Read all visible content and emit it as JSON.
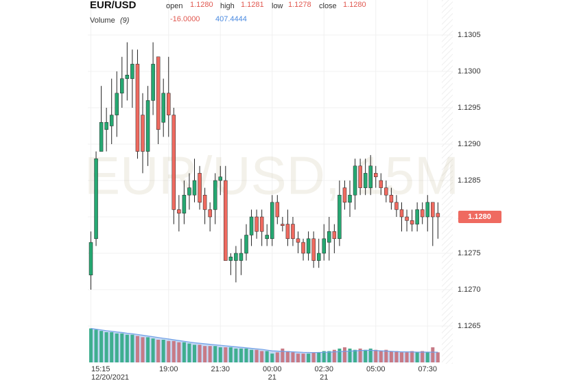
{
  "chart_data": {
    "type": "candlestick",
    "symbol": "EUR/USD",
    "watermark": "EUR/USD, 15M",
    "legend": {
      "open_label": "open",
      "open": "1.1280",
      "high_label": "high",
      "high": "1.1281",
      "low_label": "low",
      "low": "1.1278",
      "close_label": "close",
      "close": "1.1280"
    },
    "volume_label": "Volume",
    "volume_period": "(9)",
    "volume_change": "-16.0000",
    "categories": [
      "15:15",
      null,
      null,
      null,
      null,
      null,
      null,
      null,
      null,
      null,
      null,
      null,
      null,
      null,
      null,
      "19:00",
      null,
      null,
      null,
      null,
      null,
      null,
      null,
      null,
      null,
      "21:30",
      null,
      null,
      null,
      null,
      null,
      null,
      null,
      null,
      null,
      "00:00",
      null,
      null,
      null,
      null,
      null,
      null,
      null,
      null,
      null,
      "02:30",
      null,
      null,
      null,
      null,
      null,
      null,
      null,
      null,
      null,
      "05:00",
      null,
      null,
      null,
      null,
      null,
      null,
      null,
      null,
      null,
      "07:30",
      null,
      null
    ],
    "category_dates": [
      "12/20/2021",
      null,
      null,
      null,
      null,
      null,
      null,
      null,
      null,
      null,
      null,
      null,
      null,
      null,
      null,
      null,
      null,
      null,
      null,
      null,
      null,
      null,
      null,
      null,
      null,
      null,
      null,
      null,
      null,
      null,
      null,
      null,
      null,
      null,
      null,
      "21",
      null,
      null,
      null,
      null,
      null,
      null,
      null,
      null,
      null,
      "21",
      null,
      null,
      null,
      null,
      null,
      null,
      null,
      null,
      null,
      null,
      null,
      null,
      null,
      null,
      null,
      null,
      null,
      null,
      null,
      null,
      null,
      null
    ],
    "open": [
      1.1272,
      1.1277,
      1.1289,
      1.1292,
      1.12925,
      1.1294,
      1.1297,
      1.1299,
      1.1299,
      1.1301,
      1.1294,
      1.1289,
      1.1296,
      1.1302,
      1.1293,
      1.1297,
      1.1294,
      1.1281,
      1.12805,
      1.1283,
      1.1283,
      1.1286,
      1.1283,
      1.1281,
      1.1281,
      1.1285,
      1.1285,
      1.1274,
      1.1274,
      1.1274,
      1.1275,
      1.12775,
      1.128,
      1.128,
      1.1277,
      1.1277,
      1.1282,
      1.1279,
      1.1279,
      1.1279,
      1.1277,
      1.12765,
      1.1275,
      1.1277,
      1.1274,
      1.1275,
      1.12765,
      1.1278,
      1.1277,
      1.1284,
      1.1282,
      1.1283,
      1.1287,
      1.1284,
      1.1284,
      1.1286,
      1.1285,
      1.1284,
      1.1283,
      1.1282,
      1.1281,
      1.128,
      1.12795,
      1.1279,
      1.1281,
      1.128,
      1.1282,
      1.12805
    ],
    "high": [
      1.1278,
      1.1289,
      1.1298,
      1.1295,
      1.1299,
      1.13,
      1.1302,
      1.1304,
      1.1303,
      1.1303,
      1.1297,
      1.1298,
      1.1304,
      1.1302,
      1.1299,
      1.1302,
      1.1295,
      1.1283,
      1.1285,
      1.1286,
      1.1288,
      1.1287,
      1.1284,
      1.1282,
      1.1286,
      1.1287,
      1.1287,
      1.1275,
      1.1276,
      1.1277,
      1.1279,
      1.1281,
      1.1281,
      1.1281,
      1.1279,
      1.1283,
      1.1283,
      1.128,
      1.1281,
      1.128,
      1.1278,
      1.1277,
      1.1278,
      1.1278,
      1.1277,
      1.1279,
      1.128,
      1.1279,
      1.1285,
      1.1285,
      1.1285,
      1.1288,
      1.1288,
      1.1288,
      1.12885,
      1.1287,
      1.1286,
      1.1285,
      1.1284,
      1.1283,
      1.1282,
      1.1281,
      1.1281,
      1.1282,
      1.1282,
      1.1283,
      1.1282,
      1.1282
    ],
    "low": [
      1.127,
      1.1276,
      1.1289,
      1.1289,
      1.129,
      1.1291,
      1.1295,
      1.1296,
      1.1295,
      1.1288,
      1.1286,
      1.1287,
      1.1294,
      1.129,
      1.1291,
      1.1291,
      1.1279,
      1.1278,
      1.1279,
      1.1281,
      1.1282,
      1.1281,
      1.1279,
      1.1278,
      1.1279,
      1.1283,
      1.1274,
      1.1272,
      1.1271,
      1.1272,
      1.1274,
      1.1276,
      1.1277,
      1.1276,
      1.1276,
      1.1276,
      1.1279,
      1.1278,
      1.1276,
      1.1276,
      1.1275,
      1.1274,
      1.1274,
      1.1273,
      1.1273,
      1.1274,
      1.1274,
      1.1275,
      1.1276,
      1.1281,
      1.128,
      1.1281,
      1.1283,
      1.1283,
      1.1283,
      1.1284,
      1.1283,
      1.1282,
      1.1281,
      1.128,
      1.1278,
      1.1278,
      1.1278,
      1.1278,
      1.1279,
      1.1278,
      1.1276,
      1.1277
    ],
    "close": [
      1.12765,
      1.1288,
      1.1293,
      1.1293,
      1.1294,
      1.1297,
      1.1299,
      1.12995,
      1.1301,
      1.1289,
      1.1289,
      1.1296,
      1.1301,
      1.1292,
      1.1297,
      1.1294,
      1.1281,
      1.12805,
      1.1283,
      1.1284,
      1.1285,
      1.1282,
      1.1281,
      1.128,
      1.1285,
      1.12855,
      1.1274,
      1.12745,
      1.1275,
      1.1275,
      1.12775,
      1.128,
      1.1278,
      1.1278,
      1.12775,
      1.1282,
      1.128,
      1.12788,
      1.1277,
      1.1277,
      1.12765,
      1.1275,
      1.1277,
      1.1274,
      1.1275,
      1.1277,
      1.1278,
      1.1277,
      1.1283,
      1.1282,
      1.1283,
      1.1287,
      1.1284,
      1.1286,
      1.1287,
      1.12855,
      1.1284,
      1.1283,
      1.1282,
      1.1281,
      1.128,
      1.12795,
      1.1279,
      1.1281,
      1.128,
      1.1282,
      1.128,
      1.128
    ],
    "volume": [
      1350,
      1300,
      1250,
      1200,
      1200,
      1150,
      1150,
      1100,
      1100,
      1050,
      1000,
      1000,
      950,
      900,
      900,
      850,
      850,
      800,
      800,
      750,
      700,
      700,
      650,
      650,
      650,
      600,
      600,
      600,
      550,
      550,
      550,
      500,
      500,
      450,
      450,
      350,
      400,
      550,
      450,
      400,
      350,
      350,
      350,
      400,
      400,
      450,
      450,
      500,
      550,
      600,
      550,
      500,
      550,
      500,
      550,
      500,
      450,
      500,
      450,
      450,
      400,
      400,
      450,
      400,
      450,
      400,
      600,
      400
    ],
    "volume_ma": [
      1350,
      1320,
      1290,
      1260,
      1240,
      1210,
      1190,
      1160,
      1140,
      1110,
      1080,
      1050,
      1020,
      990,
      960,
      930,
      900,
      870,
      840,
      810,
      780,
      760,
      740,
      720,
      700,
      680,
      660,
      640,
      620,
      600,
      580,
      560,
      540,
      520,
      490,
      460,
      450,
      440,
      430,
      420,
      410,
      400,
      395,
      390,
      395,
      400,
      410,
      420,
      430,
      440,
      450,
      460,
      470,
      480,
      480,
      470,
      460,
      450,
      440,
      430,
      420,
      420,
      415,
      410,
      410,
      410,
      408,
      407.4444
    ],
    "up_color": "#26a872",
    "down_color": "#ef6a60",
    "volume_up_color": "#3fae8f",
    "volume_down_color": "#c77a86",
    "volume_ma_color": "#6f9fe6",
    "ylim": [
      1.126,
      1.131
    ],
    "yticks": [
      {
        "value": 1.1265,
        "label": "1.1265"
      },
      {
        "value": 1.127,
        "label": "1.1270"
      },
      {
        "value": 1.1275,
        "label": "1.1275"
      },
      {
        "value": 1.128,
        "label": "1.1280"
      },
      {
        "value": 1.1285,
        "label": "1.1285"
      },
      {
        "value": 1.129,
        "label": "1.1290"
      },
      {
        "value": 1.1295,
        "label": "1.1295"
      },
      {
        "value": 1.13,
        "label": "1.1300"
      },
      {
        "value": 1.1305,
        "label": "1.1305"
      }
    ],
    "vlim": [
      0,
      1500
    ],
    "last_price": {
      "value": 1.128,
      "label": "1.1280"
    },
    "grid": true
  }
}
